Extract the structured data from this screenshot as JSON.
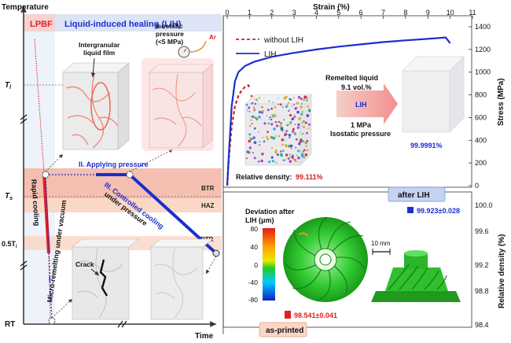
{
  "left": {
    "y_axis_label": "Temperature",
    "x_axis_label": "Time",
    "header_lpbf": "LPBF",
    "header_lih": "Liquid-induced healing (LIH)",
    "ticks": {
      "tl": "T",
      "tl_sub": "l",
      "ts": "T",
      "ts_sub": "s",
      "half": "0.5T",
      "half_sub": "l",
      "rt": "RT"
    },
    "bands": {
      "btr": "BTR",
      "haz": "HAZ",
      "dtr": "DTR"
    },
    "labels": {
      "rapid_cooling": "Rapid cooling",
      "micro_remelting": "Micro-remelting under vacuum",
      "step1": "I",
      "step2": "II. Applying pressure",
      "step3_line1": "III. Controlled cooling",
      "step3_line2": "under pressure",
      "film_line1": "Intergranular",
      "film_line2": "liquid film",
      "iso_line1": "Isostatic",
      "iso_line2": "pressure",
      "iso_line3": "(<5 MPa)",
      "ar": "Ar",
      "crack": "Crack"
    },
    "colors": {
      "lpbf": "#e02020",
      "lih": "#1a2fd0",
      "btr_band": "#f4b8a8",
      "haz_band": "#fbd3c0"
    }
  },
  "stress_strain": {
    "xlabel": "Strain (%)",
    "ylabel": "Stress (MPa)",
    "legend": [
      "without LIH",
      "LIH"
    ],
    "relative_density_label": "Relative density:",
    "relative_density_value": "99.111%",
    "lih_density": "99.9991%",
    "arrow_lines": [
      "Remelted liquid",
      "9.1 vol.%",
      "LIH",
      "1 MPa",
      "Isostatic pressure"
    ]
  },
  "chart_data": {
    "type": "line",
    "xlabel": "Strain (%)",
    "ylabel": "Stress (MPa)",
    "xlim": [
      0,
      11
    ],
    "ylim": [
      0,
      1400
    ],
    "xticks": [
      0,
      1,
      2,
      3,
      4,
      5,
      6,
      7,
      8,
      9,
      10,
      11
    ],
    "yticks": [
      0,
      200,
      400,
      600,
      800,
      1000,
      1200,
      1400
    ],
    "series": [
      {
        "name": "without LIH",
        "style": "dashed",
        "color": "#d22020",
        "x": [
          0.0,
          0.08,
          0.2,
          0.35,
          0.5,
          0.65,
          0.8,
          0.95,
          1.02
        ],
        "y": [
          0,
          250,
          520,
          700,
          790,
          840,
          870,
          885,
          860
        ]
      },
      {
        "name": "LIH",
        "style": "solid",
        "color": "#1a2fd0",
        "x": [
          0.0,
          0.08,
          0.2,
          0.35,
          0.5,
          0.8,
          1.2,
          2.0,
          3.0,
          4.0,
          5.0,
          6.0,
          7.0,
          8.0,
          9.0,
          9.8,
          10.0
        ],
        "y": [
          0,
          300,
          700,
          920,
          1000,
          1055,
          1090,
          1135,
          1170,
          1200,
          1225,
          1245,
          1265,
          1280,
          1293,
          1305,
          1255
        ]
      }
    ]
  },
  "density": {
    "ylabel": "Relative density (%)",
    "yticks": [
      "98.4",
      "98.8",
      "99.2",
      "99.6",
      "100.0"
    ],
    "after_label": "after LIH",
    "after_value": "99.923±0.028",
    "printed_label": "as-printed",
    "printed_value": "98.541±0.041",
    "deviation_title_1": "Deviation after",
    "deviation_title_2": "LIH (μm)",
    "colorbar_ticks": [
      "80",
      "40",
      "0",
      "-40",
      "-80"
    ],
    "scale_bar": "10 mm"
  }
}
